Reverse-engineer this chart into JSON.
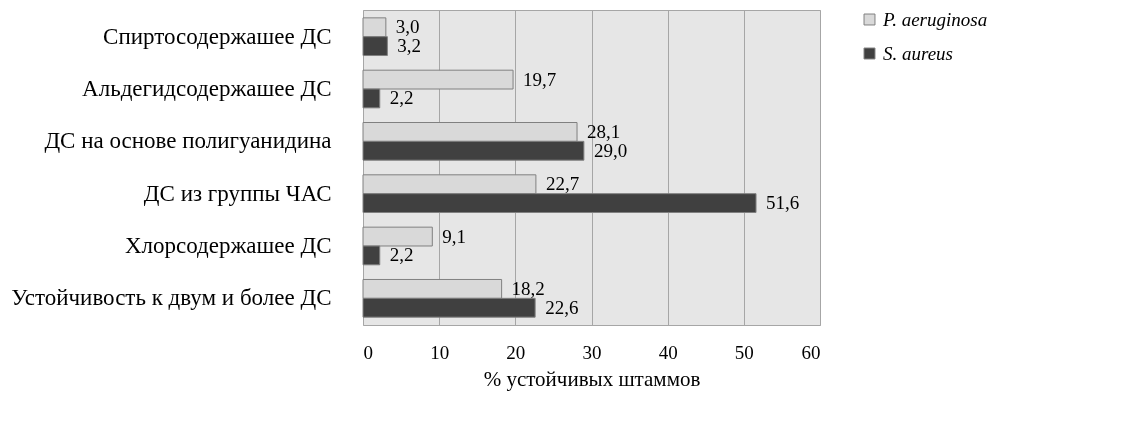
{
  "chart_data": {
    "type": "bar",
    "orientation": "horizontal",
    "xlabel": "% устойчивых штаммов",
    "categories": [
      "Спиртосодержашее ДС",
      "Альдегидсодержашее ДС",
      "ДС на основе полигуанидина",
      "ДС из группы  ЧАС",
      "Хлорсодержашее ДС",
      "Устойчивость к двум и более ДС"
    ],
    "series": [
      {
        "name": "P. aeruginosa",
        "color": "#d9d9d9",
        "values": [
          3.0,
          19.7,
          28.1,
          22.7,
          9.1,
          18.2
        ],
        "value_labels": [
          "3,0",
          "19,7",
          "28,1",
          "22,7",
          "9,1",
          "18,2"
        ]
      },
      {
        "name": "S. aureus",
        "color": "#404040",
        "values": [
          3.2,
          2.2,
          29.0,
          51.6,
          2.2,
          22.6
        ],
        "value_labels": [
          "3,2",
          "2,2",
          "29,0",
          "51,6",
          "2,2",
          "22,6"
        ]
      }
    ],
    "xlim": [
      0,
      60
    ],
    "xticks": [
      0,
      10,
      20,
      30,
      40,
      50,
      60
    ],
    "grid": "x",
    "legend": "right"
  }
}
